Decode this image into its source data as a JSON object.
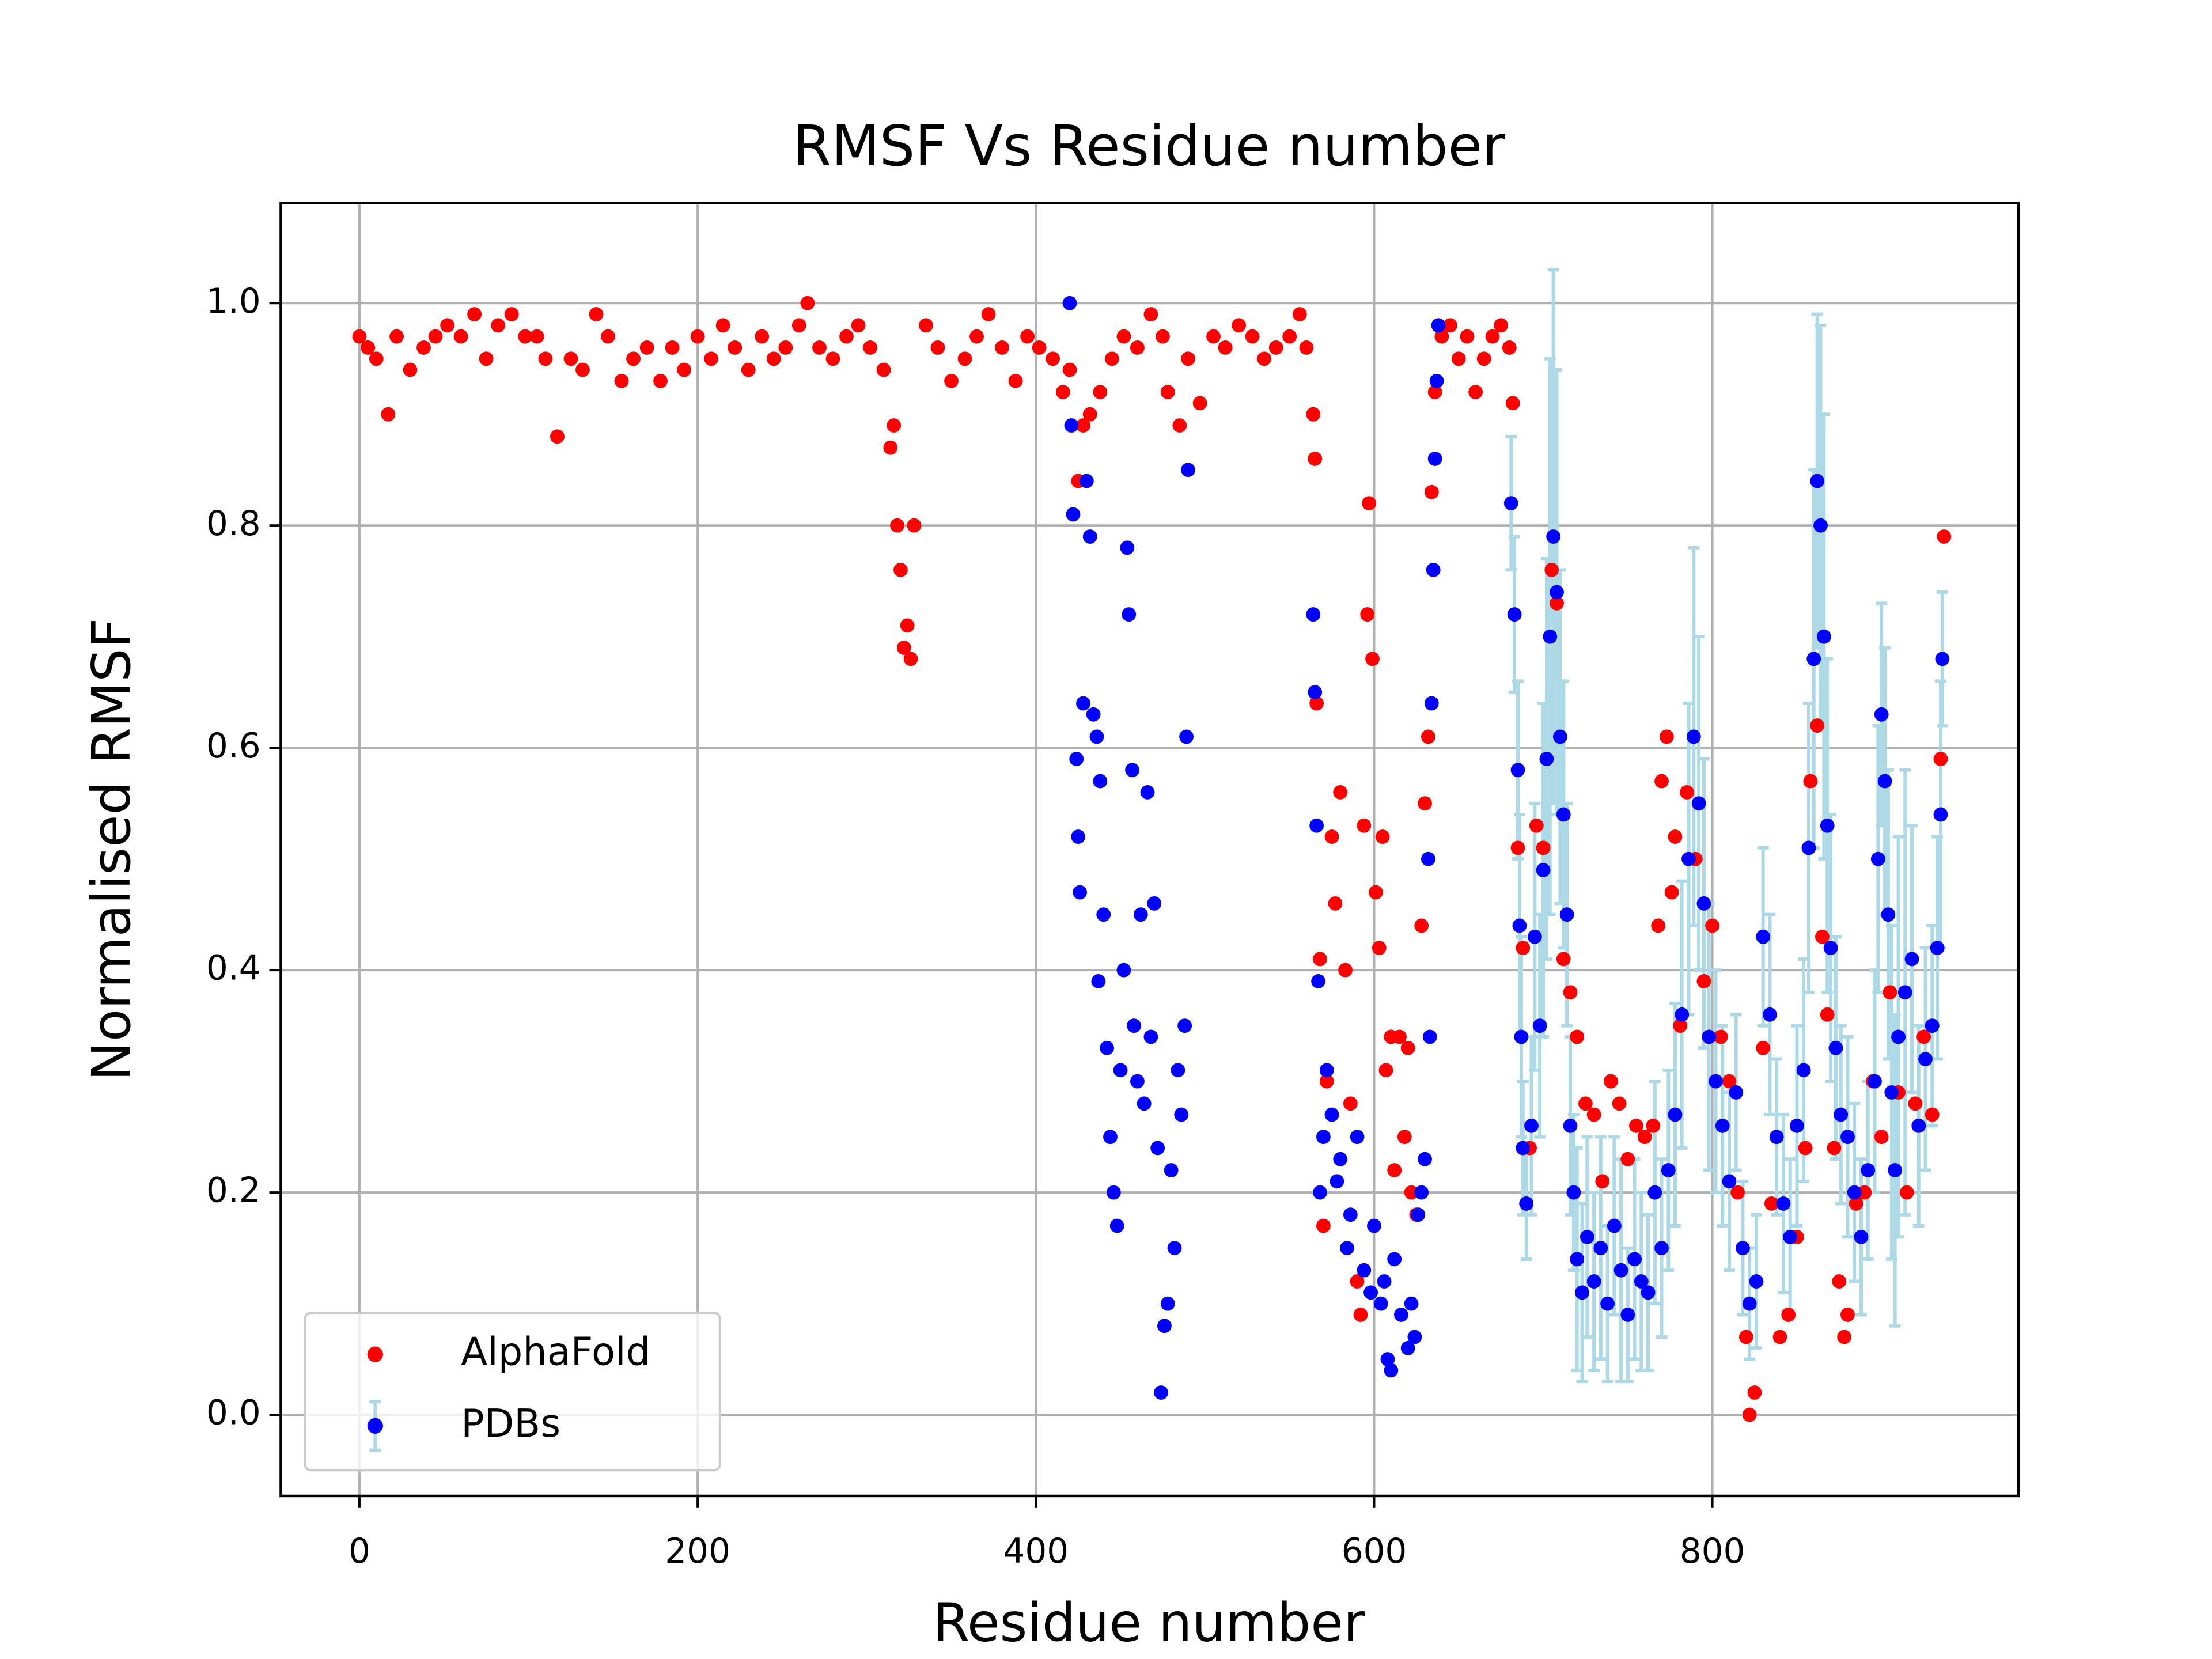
{
  "chart_data": {
    "type": "scatter",
    "title": "RMSF Vs Residue number",
    "x_label": "Residue number",
    "y_label": "Normalised RMSF",
    "xlim": [
      -46.5,
      981
    ],
    "ylim": [
      -0.073,
      1.09
    ],
    "xticks": [
      0,
      200,
      400,
      600,
      800
    ],
    "yticks": [
      {
        "value": 0,
        "label": "0.0"
      },
      0.2,
      0.4,
      0.6,
      0.8,
      {
        "value": 1,
        "label": "1.0"
      }
    ],
    "grid": true,
    "legend": "lower left",
    "series": [
      {
        "name": "AlphaFold",
        "color": "#ff0000",
        "x": [
          0,
          5,
          10,
          17,
          22,
          30,
          38,
          45,
          52,
          60,
          68,
          75,
          82,
          90,
          98,
          105,
          110,
          117,
          125,
          132,
          140,
          147,
          155,
          162,
          170,
          178,
          185,
          192,
          200,
          208,
          215,
          222,
          230,
          238,
          245,
          252,
          260,
          265,
          272,
          280,
          288,
          295,
          302,
          310,
          314,
          316,
          318,
          320,
          322,
          324,
          326,
          328,
          335,
          342,
          350,
          358,
          365,
          372,
          380,
          388,
          395,
          402,
          410,
          416,
          420,
          425,
          428,
          432,
          438,
          445,
          452,
          460,
          468,
          475,
          478,
          485,
          490,
          497,
          505,
          512,
          520,
          528,
          535,
          542,
          550,
          556,
          560,
          564,
          565,
          566,
          568,
          570,
          572,
          575,
          577,
          580,
          583,
          586,
          590,
          592,
          594,
          596,
          597,
          599,
          601,
          603,
          605,
          607,
          610,
          612,
          615,
          618,
          620,
          622,
          625,
          628,
          630,
          632,
          634,
          636,
          640,
          645,
          650,
          655,
          660,
          665,
          670,
          675,
          680,
          682,
          685,
          688,
          692,
          696,
          700,
          705,
          708,
          712,
          716,
          720,
          725,
          730,
          735,
          740,
          745,
          750,
          755,
          760,
          765,
          768,
          770,
          773,
          776,
          778,
          781,
          785,
          790,
          795,
          800,
          805,
          810,
          815,
          820,
          822,
          825,
          830,
          835,
          840,
          845,
          850,
          855,
          858,
          862,
          865,
          868,
          872,
          875,
          878,
          880,
          885,
          890,
          895,
          900,
          905,
          910,
          915,
          920,
          925,
          930,
          935,
          937
        ],
        "values": [
          0.97,
          0.96,
          0.95,
          0.9,
          0.97,
          0.94,
          0.96,
          0.97,
          0.98,
          0.97,
          0.99,
          0.95,
          0.98,
          0.99,
          0.97,
          0.97,
          0.95,
          0.88,
          0.95,
          0.94,
          0.99,
          0.97,
          0.93,
          0.95,
          0.96,
          0.93,
          0.96,
          0.94,
          0.97,
          0.95,
          0.98,
          0.96,
          0.94,
          0.97,
          0.95,
          0.96,
          0.98,
          1.0,
          0.96,
          0.95,
          0.97,
          0.98,
          0.96,
          0.94,
          0.87,
          0.89,
          0.8,
          0.76,
          0.69,
          0.71,
          0.68,
          0.8,
          0.98,
          0.96,
          0.93,
          0.95,
          0.97,
          0.99,
          0.96,
          0.93,
          0.97,
          0.96,
          0.95,
          0.92,
          0.94,
          0.84,
          0.89,
          0.9,
          0.92,
          0.95,
          0.97,
          0.96,
          0.99,
          0.97,
          0.92,
          0.89,
          0.95,
          0.91,
          0.97,
          0.96,
          0.98,
          0.97,
          0.95,
          0.96,
          0.97,
          0.99,
          0.96,
          0.9,
          0.86,
          0.64,
          0.41,
          0.17,
          0.3,
          0.52,
          0.46,
          0.56,
          0.4,
          0.28,
          0.12,
          0.09,
          0.53,
          0.72,
          0.82,
          0.68,
          0.47,
          0.42,
          0.52,
          0.31,
          0.34,
          0.22,
          0.34,
          0.25,
          0.33,
          0.2,
          0.18,
          0.44,
          0.55,
          0.61,
          0.83,
          0.92,
          0.97,
          0.98,
          0.95,
          0.97,
          0.92,
          0.95,
          0.97,
          0.98,
          0.96,
          0.91,
          0.51,
          0.42,
          0.24,
          0.53,
          0.51,
          0.76,
          0.73,
          0.41,
          0.38,
          0.34,
          0.28,
          0.27,
          0.21,
          0.3,
          0.28,
          0.23,
          0.26,
          0.25,
          0.26,
          0.44,
          0.57,
          0.61,
          0.47,
          0.52,
          0.35,
          0.56,
          0.5,
          0.39,
          0.44,
          0.34,
          0.3,
          0.2,
          0.07,
          0.0,
          0.02,
          0.33,
          0.19,
          0.07,
          0.09,
          0.16,
          0.24,
          0.57,
          0.62,
          0.43,
          0.36,
          0.24,
          0.12,
          0.07,
          0.09,
          0.19,
          0.2,
          0.3,
          0.25,
          0.38,
          0.29,
          0.2,
          0.28,
          0.34,
          0.27,
          0.59,
          0.79
        ]
      },
      {
        "name": "PDBs",
        "color": "#0000ff",
        "error_color": "#add8e6",
        "x": [
          420,
          421,
          422,
          424,
          425,
          426,
          428,
          430,
          432,
          434,
          436,
          437,
          438,
          440,
          442,
          444,
          446,
          448,
          450,
          452,
          454,
          455,
          457,
          458,
          460,
          462,
          464,
          466,
          468,
          470,
          472,
          474,
          476,
          478,
          480,
          482,
          484,
          486,
          488,
          489,
          490,
          564,
          565,
          566,
          567,
          568,
          570,
          572,
          575,
          578,
          580,
          584,
          586,
          590,
          594,
          598,
          600,
          604,
          606,
          608,
          610,
          612,
          616,
          620,
          622,
          624,
          626,
          628,
          630,
          632,
          633,
          634,
          635,
          636,
          637,
          638,
          681,
          683,
          685,
          686,
          687,
          688,
          690,
          693,
          695,
          698,
          700,
          702,
          704,
          706,
          708,
          710,
          712,
          714,
          716,
          718,
          720,
          723,
          726,
          730,
          734,
          738,
          742,
          746,
          750,
          754,
          758,
          762,
          766,
          770,
          774,
          778,
          782,
          786,
          789,
          792,
          795,
          798,
          802,
          806,
          810,
          814,
          818,
          822,
          826,
          830,
          834,
          838,
          842,
          846,
          850,
          854,
          857,
          860,
          862,
          864,
          866,
          868,
          870,
          873,
          876,
          880,
          884,
          888,
          892,
          896,
          898,
          900,
          902,
          904,
          906,
          908,
          910,
          914,
          918,
          922,
          926,
          930,
          933,
          935,
          936
        ],
        "values": [
          1.0,
          0.89,
          0.81,
          0.59,
          0.52,
          0.47,
          0.64,
          0.84,
          0.79,
          0.63,
          0.61,
          0.39,
          0.57,
          0.45,
          0.33,
          0.25,
          0.2,
          0.17,
          0.31,
          0.4,
          0.78,
          0.72,
          0.58,
          0.35,
          0.3,
          0.45,
          0.28,
          0.56,
          0.34,
          0.46,
          0.24,
          0.02,
          0.08,
          0.1,
          0.22,
          0.15,
          0.31,
          0.27,
          0.35,
          0.61,
          0.85,
          0.72,
          0.65,
          0.53,
          0.39,
          0.2,
          0.25,
          0.31,
          0.27,
          0.21,
          0.23,
          0.15,
          0.18,
          0.25,
          0.13,
          0.11,
          0.17,
          0.1,
          0.12,
          0.05,
          0.04,
          0.14,
          0.09,
          0.06,
          0.1,
          0.07,
          0.18,
          0.2,
          0.23,
          0.5,
          0.34,
          0.64,
          0.76,
          0.86,
          0.93,
          0.98,
          0.82,
          0.72,
          0.58,
          0.44,
          0.34,
          0.24,
          0.19,
          0.26,
          0.43,
          0.35,
          0.49,
          0.59,
          0.7,
          0.79,
          0.74,
          0.61,
          0.54,
          0.45,
          0.26,
          0.2,
          0.14,
          0.11,
          0.16,
          0.12,
          0.15,
          0.1,
          0.17,
          0.13,
          0.09,
          0.14,
          0.12,
          0.11,
          0.2,
          0.15,
          0.22,
          0.27,
          0.36,
          0.5,
          0.61,
          0.55,
          0.46,
          0.34,
          0.3,
          0.26,
          0.21,
          0.29,
          0.15,
          0.1,
          0.12,
          0.43,
          0.36,
          0.25,
          0.19,
          0.16,
          0.26,
          0.31,
          0.51,
          0.68,
          0.84,
          0.8,
          0.7,
          0.53,
          0.42,
          0.33,
          0.27,
          0.25,
          0.2,
          0.16,
          0.22,
          0.3,
          0.5,
          0.63,
          0.57,
          0.45,
          0.29,
          0.22,
          0.34,
          0.38,
          0.41,
          0.26,
          0.32,
          0.35,
          0.42,
          0.54,
          0.68
        ],
        "errors": [
          0,
          0,
          0,
          0,
          0,
          0,
          0,
          0,
          0,
          0,
          0,
          0,
          0,
          0,
          0,
          0,
          0,
          0,
          0,
          0,
          0,
          0,
          0,
          0,
          0,
          0,
          0,
          0,
          0,
          0,
          0,
          0,
          0,
          0,
          0,
          0,
          0,
          0,
          0,
          0,
          0,
          0,
          0,
          0,
          0,
          0,
          0,
          0,
          0,
          0,
          0,
          0,
          0,
          0,
          0,
          0,
          0,
          0,
          0,
          0,
          0,
          0,
          0,
          0,
          0,
          0,
          0,
          0,
          0,
          0,
          0,
          0,
          0,
          0,
          0,
          0,
          0.06,
          0.07,
          0.08,
          0.1,
          0.09,
          0.06,
          0.05,
          0.08,
          0.12,
          0.1,
          0.15,
          0.18,
          0.25,
          0.24,
          0.2,
          0.15,
          0.12,
          0.1,
          0.08,
          0.07,
          0.1,
          0.08,
          0.09,
          0.08,
          0.1,
          0.07,
          0.08,
          0.1,
          0.06,
          0.09,
          0.08,
          0.07,
          0.1,
          0.08,
          0.09,
          0.1,
          0.12,
          0.14,
          0.17,
          0.15,
          0.13,
          0.12,
          0.1,
          0.09,
          0.08,
          0.07,
          0.06,
          0.05,
          0.06,
          0.08,
          0.09,
          0.07,
          0.08,
          0.07,
          0.09,
          0.1,
          0.13,
          0.17,
          0.15,
          0.18,
          0.2,
          0.15,
          0.12,
          0.1,
          0.08,
          0.09,
          0.08,
          0.07,
          0.08,
          0.1,
          0.12,
          0.1,
          0.12,
          0.13,
          0.15,
          0.14,
          0.18,
          0.2,
          0.12,
          0.09,
          0.1,
          0.09,
          0.1,
          0.12,
          0.06
        ]
      }
    ]
  }
}
